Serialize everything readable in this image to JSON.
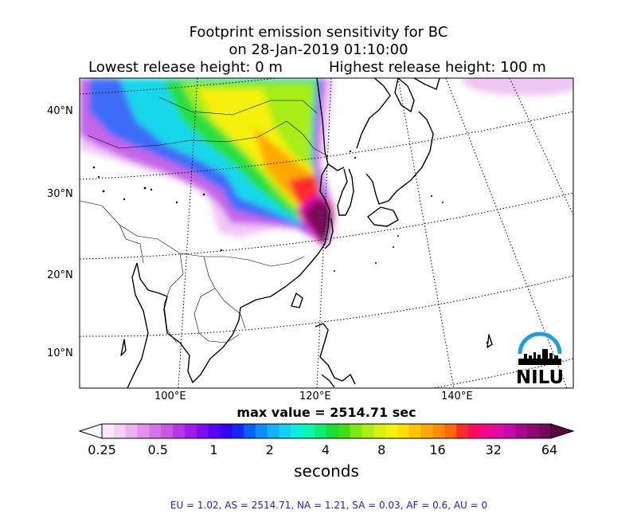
{
  "title": {
    "line1": "Footprint emission sensitivity for BC",
    "line2": "on 28-Jan-2019 01:10:00",
    "release_lowest": "Lowest release height: 0 m",
    "release_highest": "Highest release height: 100 m"
  },
  "map": {
    "lat_labels": [
      "40°N",
      "30°N",
      "20°N",
      "10°N"
    ],
    "lon_labels": [
      "100°E",
      "120°E",
      "140°E"
    ],
    "logo_text": "NILU",
    "logo_color": "#1e9ee0"
  },
  "max_value_text": "max value = 2514.71 sec",
  "colorbar": {
    "tick_labels": [
      "0.25",
      "0.5",
      "1",
      "2",
      "4",
      "8",
      "16",
      "32",
      "64"
    ],
    "unit_label": "seconds",
    "colors": [
      "#fbe8fb",
      "#f4cff6",
      "#eab3f0",
      "#df94ea",
      "#d475e6",
      "#c857e2",
      "#b735e4",
      "#9d1cea",
      "#7f0cf2",
      "#5a00f7",
      "#3200fb",
      "#1226fd",
      "#0060fb",
      "#0a90fb",
      "#10b4f7",
      "#10d4ef",
      "#0aefe1",
      "#0af7b0",
      "#0aef70",
      "#18e030",
      "#40e010",
      "#80ea10",
      "#aaf010",
      "#d2f410",
      "#f4f40a",
      "#ffdf00",
      "#ffc400",
      "#ffa800",
      "#ff8c00",
      "#ff6a00",
      "#ff2a2a",
      "#ff0a5a",
      "#f4088a",
      "#e00aa4",
      "#c608ac",
      "#a8088c",
      "#8c0a6e",
      "#76085a"
    ],
    "under_color": "#ffffff",
    "over_color": "#5e0046"
  },
  "region_summary": "EU = 1.02,  AS = 2514.71,  NA = 1.21,  SA = 0.03,  AF = 0.6,  AU = 0"
}
